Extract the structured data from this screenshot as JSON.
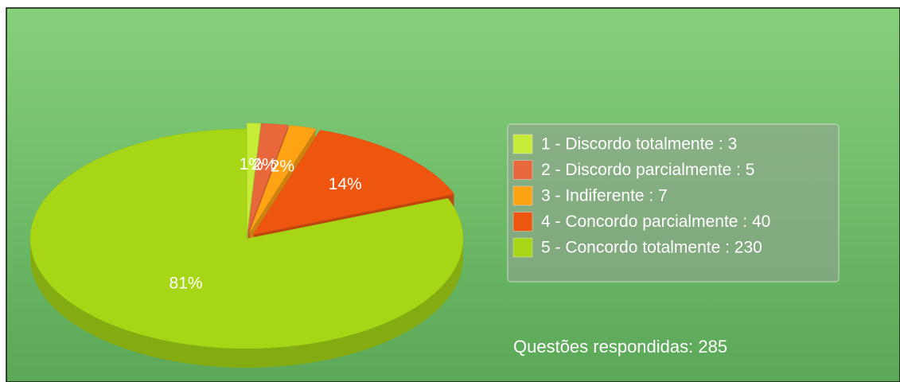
{
  "chart_data": {
    "type": "pie",
    "categories": [
      "1 - Discordo totalmente : 3",
      "2 - Discordo parcialmente : 5",
      "3 - Indiferente : 7",
      "4 - Concordo parcialmente : 40",
      "5 - Concordo totalmente : 230"
    ],
    "values": [
      1,
      2,
      2,
      14,
      81
    ],
    "value_labels": [
      "1%",
      "2%",
      "2%",
      "14%",
      "81%"
    ],
    "colors": [
      "#c6ec38",
      "#e8683c",
      "#ffa214",
      "#ee5610",
      "#a6d616"
    ],
    "legend": "right",
    "annotation": "Questões respondidas: 285"
  }
}
